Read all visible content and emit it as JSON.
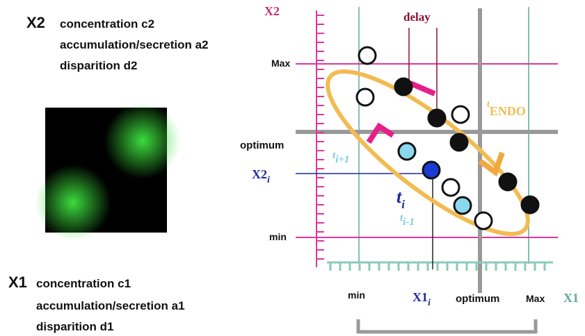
{
  "left": {
    "x2": {
      "label": "X2",
      "lines": [
        "concentration c2",
        "accumulation/secretion a2",
        "disparition d2"
      ]
    },
    "x1": {
      "label": "X1",
      "lines": [
        "concentration c1",
        "accumulation/secretion a1",
        "disparition d1"
      ]
    }
  },
  "diagram": {
    "axis_y_label": "X2",
    "delay": "delay",
    "y_max": "Max",
    "y_optimum": "optimum",
    "y_current": {
      "text": "X2",
      "sub": "i"
    },
    "y_min": "min",
    "x_min": "min",
    "x_current": {
      "text": "X1",
      "sub": "i"
    },
    "x_optimum": "optimum",
    "x_max": "Max",
    "axis_x_label": "X1",
    "t_endo": {
      "text": "t",
      "sub": "ENDO"
    },
    "t_next": {
      "text": "t",
      "sub": "i+1"
    },
    "t_current": {
      "text": "t",
      "sub": "i"
    },
    "t_prev": {
      "text": "t",
      "sub": "i-1"
    }
  }
}
